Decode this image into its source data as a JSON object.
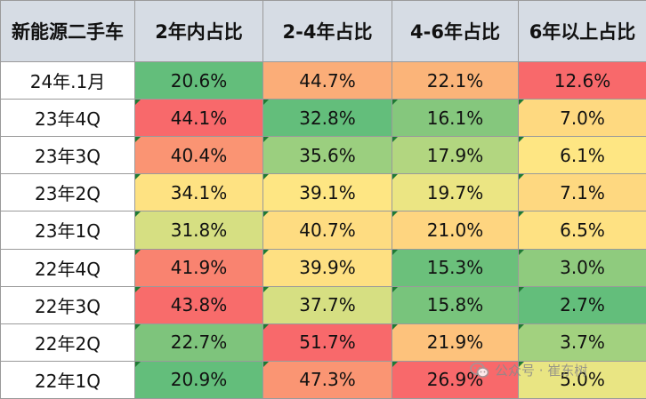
{
  "table": {
    "headers": [
      "新能源二手车",
      "2年内占比",
      "2-4年占比",
      "4-6年占比",
      "6年以上占比"
    ],
    "rows": [
      {
        "label": "24年.1月",
        "values": [
          "20.6%",
          "44.7%",
          "22.1%",
          "12.6%"
        ],
        "colors": [
          "#63be7b",
          "#fbad78",
          "#fbb479",
          "#f8696b"
        ],
        "flag": false
      },
      {
        "label": "23年4Q",
        "values": [
          "44.1%",
          "32.8%",
          "16.1%",
          "7.0%"
        ],
        "colors": [
          "#f8696b",
          "#63be7b",
          "#85c77d",
          "#fed980"
        ],
        "flag": true
      },
      {
        "label": "23年3Q",
        "values": [
          "40.4%",
          "35.6%",
          "17.9%",
          "6.1%"
        ],
        "colors": [
          "#fa9473",
          "#9bcf7f",
          "#b2d680",
          "#fee683"
        ],
        "flag": true
      },
      {
        "label": "23年2Q",
        "values": [
          "34.1%",
          "39.1%",
          "19.7%",
          "7.1%"
        ],
        "colors": [
          "#fee282",
          "#fee683",
          "#ebe583",
          "#fed880"
        ],
        "flag": true
      },
      {
        "label": "23年1Q",
        "values": [
          "31.8%",
          "40.7%",
          "21.0%",
          "6.5%"
        ],
        "colors": [
          "#d6df82",
          "#fedc81",
          "#fed580",
          "#fee182"
        ],
        "flag": true
      },
      {
        "label": "22年4Q",
        "values": [
          "41.9%",
          "39.9%",
          "15.3%",
          "3.0%"
        ],
        "colors": [
          "#f98370",
          "#fee082",
          "#6bc07b",
          "#8fcb7e"
        ],
        "flag": true
      },
      {
        "label": "22年3Q",
        "values": [
          "43.8%",
          "37.7%",
          "15.8%",
          "2.7%"
        ],
        "colors": [
          "#f86c6b",
          "#d6df82",
          "#78c47c",
          "#63be7b"
        ],
        "flag": true
      },
      {
        "label": "22年2Q",
        "values": [
          "22.7%",
          "51.7%",
          "21.9%",
          "3.7%"
        ],
        "colors": [
          "#7ec47c",
          "#f8696b",
          "#fdc27c",
          "#a2d17f"
        ],
        "flag": true
      },
      {
        "label": "22年1Q",
        "values": [
          "20.9%",
          "47.3%",
          "26.9%",
          "5.0%"
        ],
        "colors": [
          "#63be7b",
          "#fa9573",
          "#f8696b",
          "#e9e583"
        ],
        "flag": true
      }
    ]
  },
  "watermark": {
    "text": "公众号 · 崔东树",
    "icon": "wechat-icon"
  }
}
